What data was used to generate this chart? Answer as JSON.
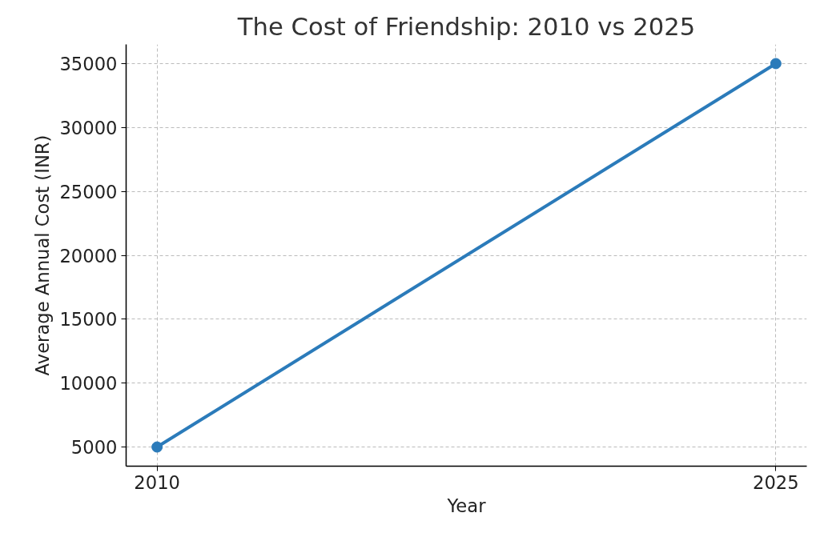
{
  "chart_data": {
    "type": "line",
    "title": "The Cost of Friendship: 2010 vs 2025",
    "xlabel": "Year",
    "ylabel": "Average Annual Cost (INR)",
    "x": [
      2010,
      2025
    ],
    "series": [
      {
        "color": "#2b7bba",
        "values": [
          5000,
          35000
        ]
      }
    ],
    "xlim": [
      2009.25,
      2025.75
    ],
    "xticks": [
      2010,
      2025
    ],
    "ylim": [
      3500,
      36500
    ],
    "yticks": [
      5000,
      10000,
      15000,
      20000,
      25000,
      30000,
      35000
    ],
    "grid": true,
    "marker": "circle",
    "line_style": "solid"
  }
}
